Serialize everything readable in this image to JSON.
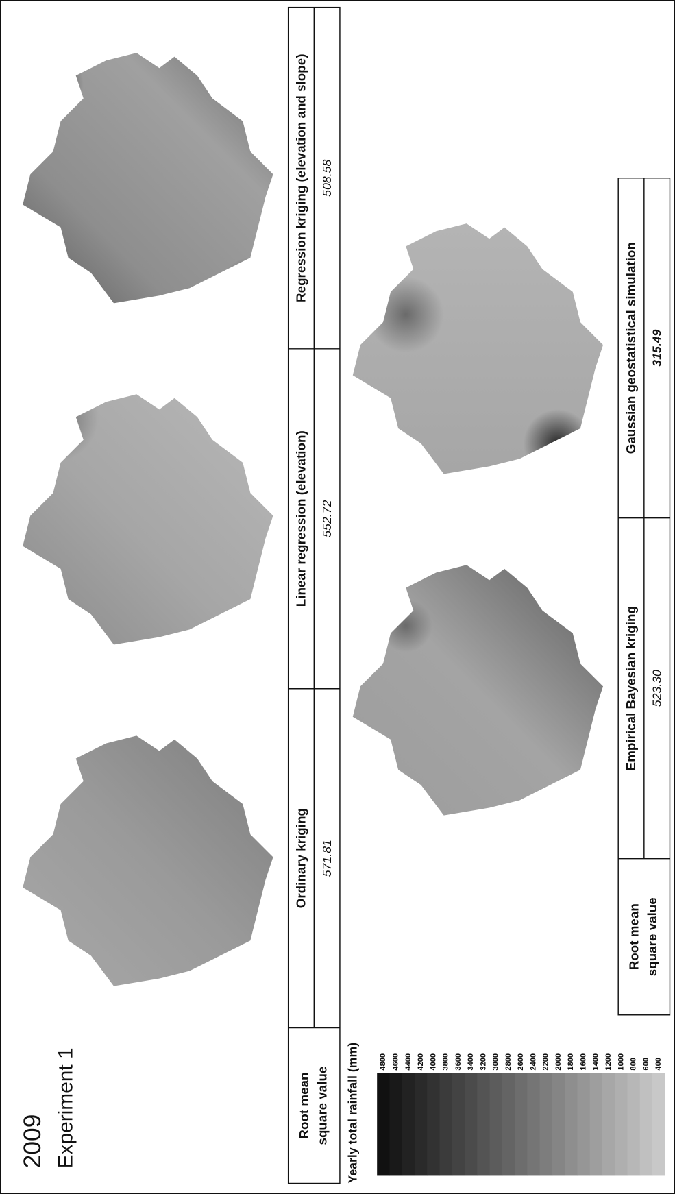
{
  "header": {
    "year": "2009",
    "experiment": "Experiment 1"
  },
  "table_top": {
    "row_label": [
      "Root mean",
      "square value"
    ],
    "columns": [
      {
        "method": "Ordinary kriging",
        "rmse": "571.81"
      },
      {
        "method": "Linear regression (elevation)",
        "rmse": "552.72"
      },
      {
        "method": "Regression kriging (elevation and slope)",
        "rmse": "508.58"
      }
    ]
  },
  "table_bottom": {
    "row_label": [
      "Root mean",
      "square value"
    ],
    "columns": [
      {
        "method": "Empirical Bayesian kriging",
        "rmse": "523.30"
      },
      {
        "method": "Gaussian geostatistical simulation",
        "rmse": "315.49"
      }
    ]
  },
  "legend": {
    "title": "Yearly total rainfall (mm)",
    "ticks": [
      4800,
      4600,
      4400,
      4200,
      4000,
      3800,
      3600,
      3400,
      3200,
      3000,
      2800,
      2600,
      2400,
      2200,
      2000,
      1800,
      1600,
      1400,
      1200,
      1000,
      800,
      600,
      400
    ]
  }
}
